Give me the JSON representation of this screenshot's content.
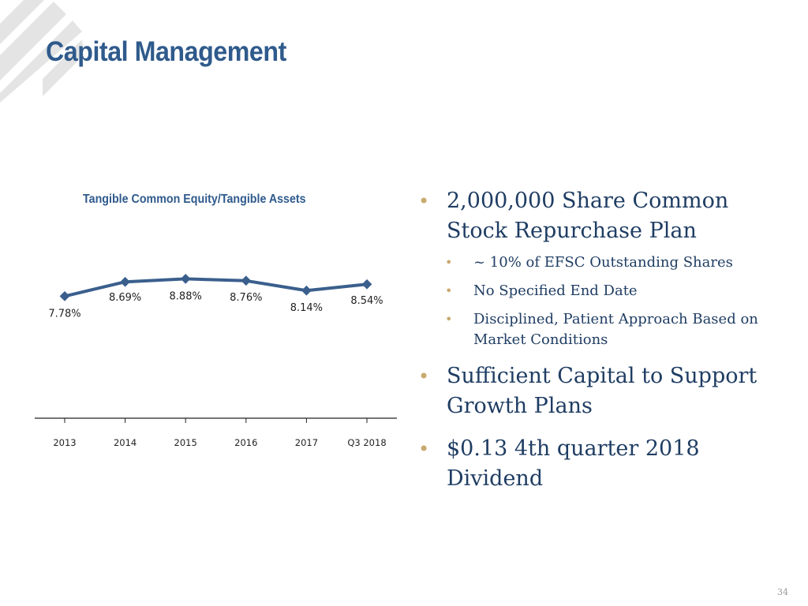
{
  "title": "Capital Management",
  "chart_data": {
    "type": "line",
    "title": "Tangible Common Equity/Tangible Assets",
    "categories": [
      "2013",
      "2014",
      "2015",
      "2016",
      "2017",
      "Q3 2018"
    ],
    "values": [
      7.78,
      8.69,
      8.88,
      8.76,
      8.14,
      8.54
    ],
    "data_labels": [
      "7.78%",
      "8.69%",
      "8.88%",
      "8.76%",
      "8.14%",
      "8.54%"
    ],
    "ylim": [
      0,
      10
    ],
    "xlabel": "",
    "ylabel": "",
    "grid": false,
    "legend": "none",
    "series_color": "#3a5f8d"
  },
  "bullets": [
    {
      "text": "2,000,000 Share Common Stock Repurchase Plan",
      "sub": [
        "~ 10% of EFSC Outstanding Shares",
        "No Specified End Date",
        "Disciplined, Patient Approach Based on Market Conditions"
      ]
    },
    {
      "text": "Sufficient Capital to Support Growth Plans",
      "sub": []
    },
    {
      "text": "$0.13 4th quarter 2018 Dividend",
      "sub": []
    }
  ],
  "page_number": "34",
  "colors": {
    "title": "#2f5a8c",
    "bullet_dot": "#c9a96e",
    "body_text": "#1f3d63",
    "logo": "#e6e6e6"
  }
}
